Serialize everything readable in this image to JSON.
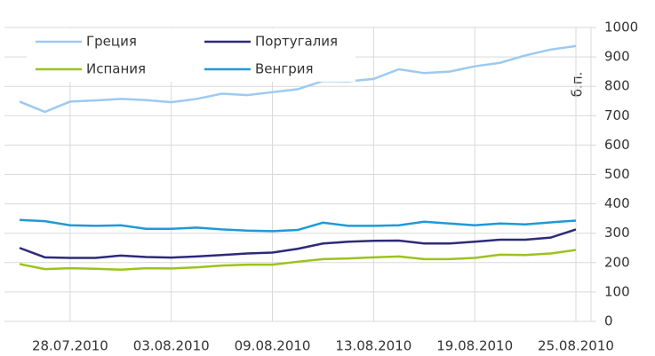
{
  "chart_data": {
    "type": "line",
    "y_label": "б.п.",
    "categories": [
      null,
      null,
      "28.07.2010",
      null,
      null,
      null,
      "03.08.2010",
      null,
      null,
      null,
      "09.08.2010",
      null,
      null,
      null,
      "13.08.2010",
      null,
      null,
      null,
      "19.08.2010",
      null,
      null,
      null,
      "25.08.2010"
    ],
    "series": [
      {
        "name": "Греция",
        "color": "#9ccaf0",
        "values": [
          748,
          713,
          748,
          752,
          757,
          753,
          746,
          757,
          775,
          770,
          780,
          790,
          818,
          817,
          825,
          858,
          845,
          850,
          868,
          880,
          905,
          925,
          937
        ]
      },
      {
        "name": "Португалия",
        "color": "#2e2a7a",
        "values": [
          250,
          218,
          216,
          216,
          224,
          219,
          217,
          221,
          226,
          231,
          234,
          247,
          265,
          271,
          274,
          275,
          265,
          265,
          271,
          278,
          278,
          285,
          313
        ]
      },
      {
        "name": "Испания",
        "color": "#9bc31c",
        "values": [
          195,
          178,
          181,
          179,
          176,
          181,
          180,
          184,
          190,
          193,
          193,
          203,
          212,
          214,
          218,
          221,
          212,
          212,
          216,
          227,
          226,
          231,
          243
        ]
      },
      {
        "name": "Венгрия",
        "color": "#1f9ad6",
        "values": [
          345,
          341,
          327,
          325,
          327,
          315,
          315,
          319,
          313,
          309,
          307,
          311,
          336,
          325,
          325,
          327,
          339,
          333,
          327,
          333,
          330,
          337,
          343
        ]
      }
    ],
    "ylim": [
      0,
      1000
    ],
    "yticks": [
      0,
      100,
      200,
      300,
      400,
      500,
      600,
      700,
      800,
      900,
      1000
    ],
    "grid": true
  }
}
